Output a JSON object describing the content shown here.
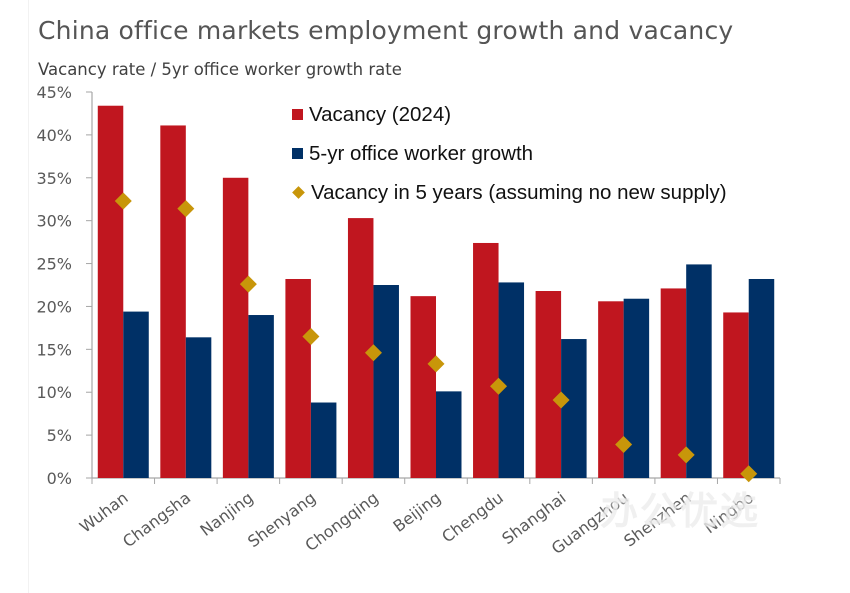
{
  "colors": {
    "vacancy": "#c0161f",
    "growth": "#003066",
    "future_vacancy": "#c8960a",
    "axis": "#a6a6a6"
  },
  "watermark": "办公优选",
  "chart_data": {
    "type": "bar",
    "title": "China office markets employment growth and vacancy",
    "subtitle": "Vacancy rate / 5yr office worker growth rate",
    "xlabel": "",
    "ylabel": "Vacancy rate / 5yr office worker growth rate",
    "ylim": [
      0,
      45
    ],
    "ytick_step": 5,
    "ytick_labels": [
      "0%",
      "5%",
      "10%",
      "15%",
      "20%",
      "25%",
      "30%",
      "35%",
      "40%",
      "45%"
    ],
    "grid": false,
    "legend_position": "top-right",
    "categories": [
      "Wuhan",
      "Changsha",
      "Nanjing",
      "Shenyang",
      "Chongqing",
      "Beijing",
      "Chengdu",
      "Shanghai",
      "Guangzhou",
      "Shenzhen",
      "Ningbo"
    ],
    "series": [
      {
        "name": "Vacancy (2024)",
        "type": "bar",
        "color_key": "vacancy",
        "values": [
          43.4,
          41.1,
          35.0,
          23.2,
          30.3,
          21.2,
          27.4,
          21.8,
          20.6,
          22.1,
          19.3
        ]
      },
      {
        "name": "5-yr office worker growth",
        "type": "bar",
        "color_key": "growth",
        "values": [
          19.4,
          16.4,
          19.0,
          8.8,
          22.5,
          10.1,
          22.8,
          16.2,
          20.9,
          24.9,
          23.2
        ]
      },
      {
        "name": "Vacancy in 5 years (assuming no new supply)",
        "type": "scatter",
        "marker": "diamond",
        "color_key": "future_vacancy",
        "values": [
          32.3,
          31.4,
          22.6,
          16.5,
          14.6,
          13.3,
          10.7,
          9.1,
          3.9,
          2.7,
          0.5
        ]
      }
    ]
  }
}
